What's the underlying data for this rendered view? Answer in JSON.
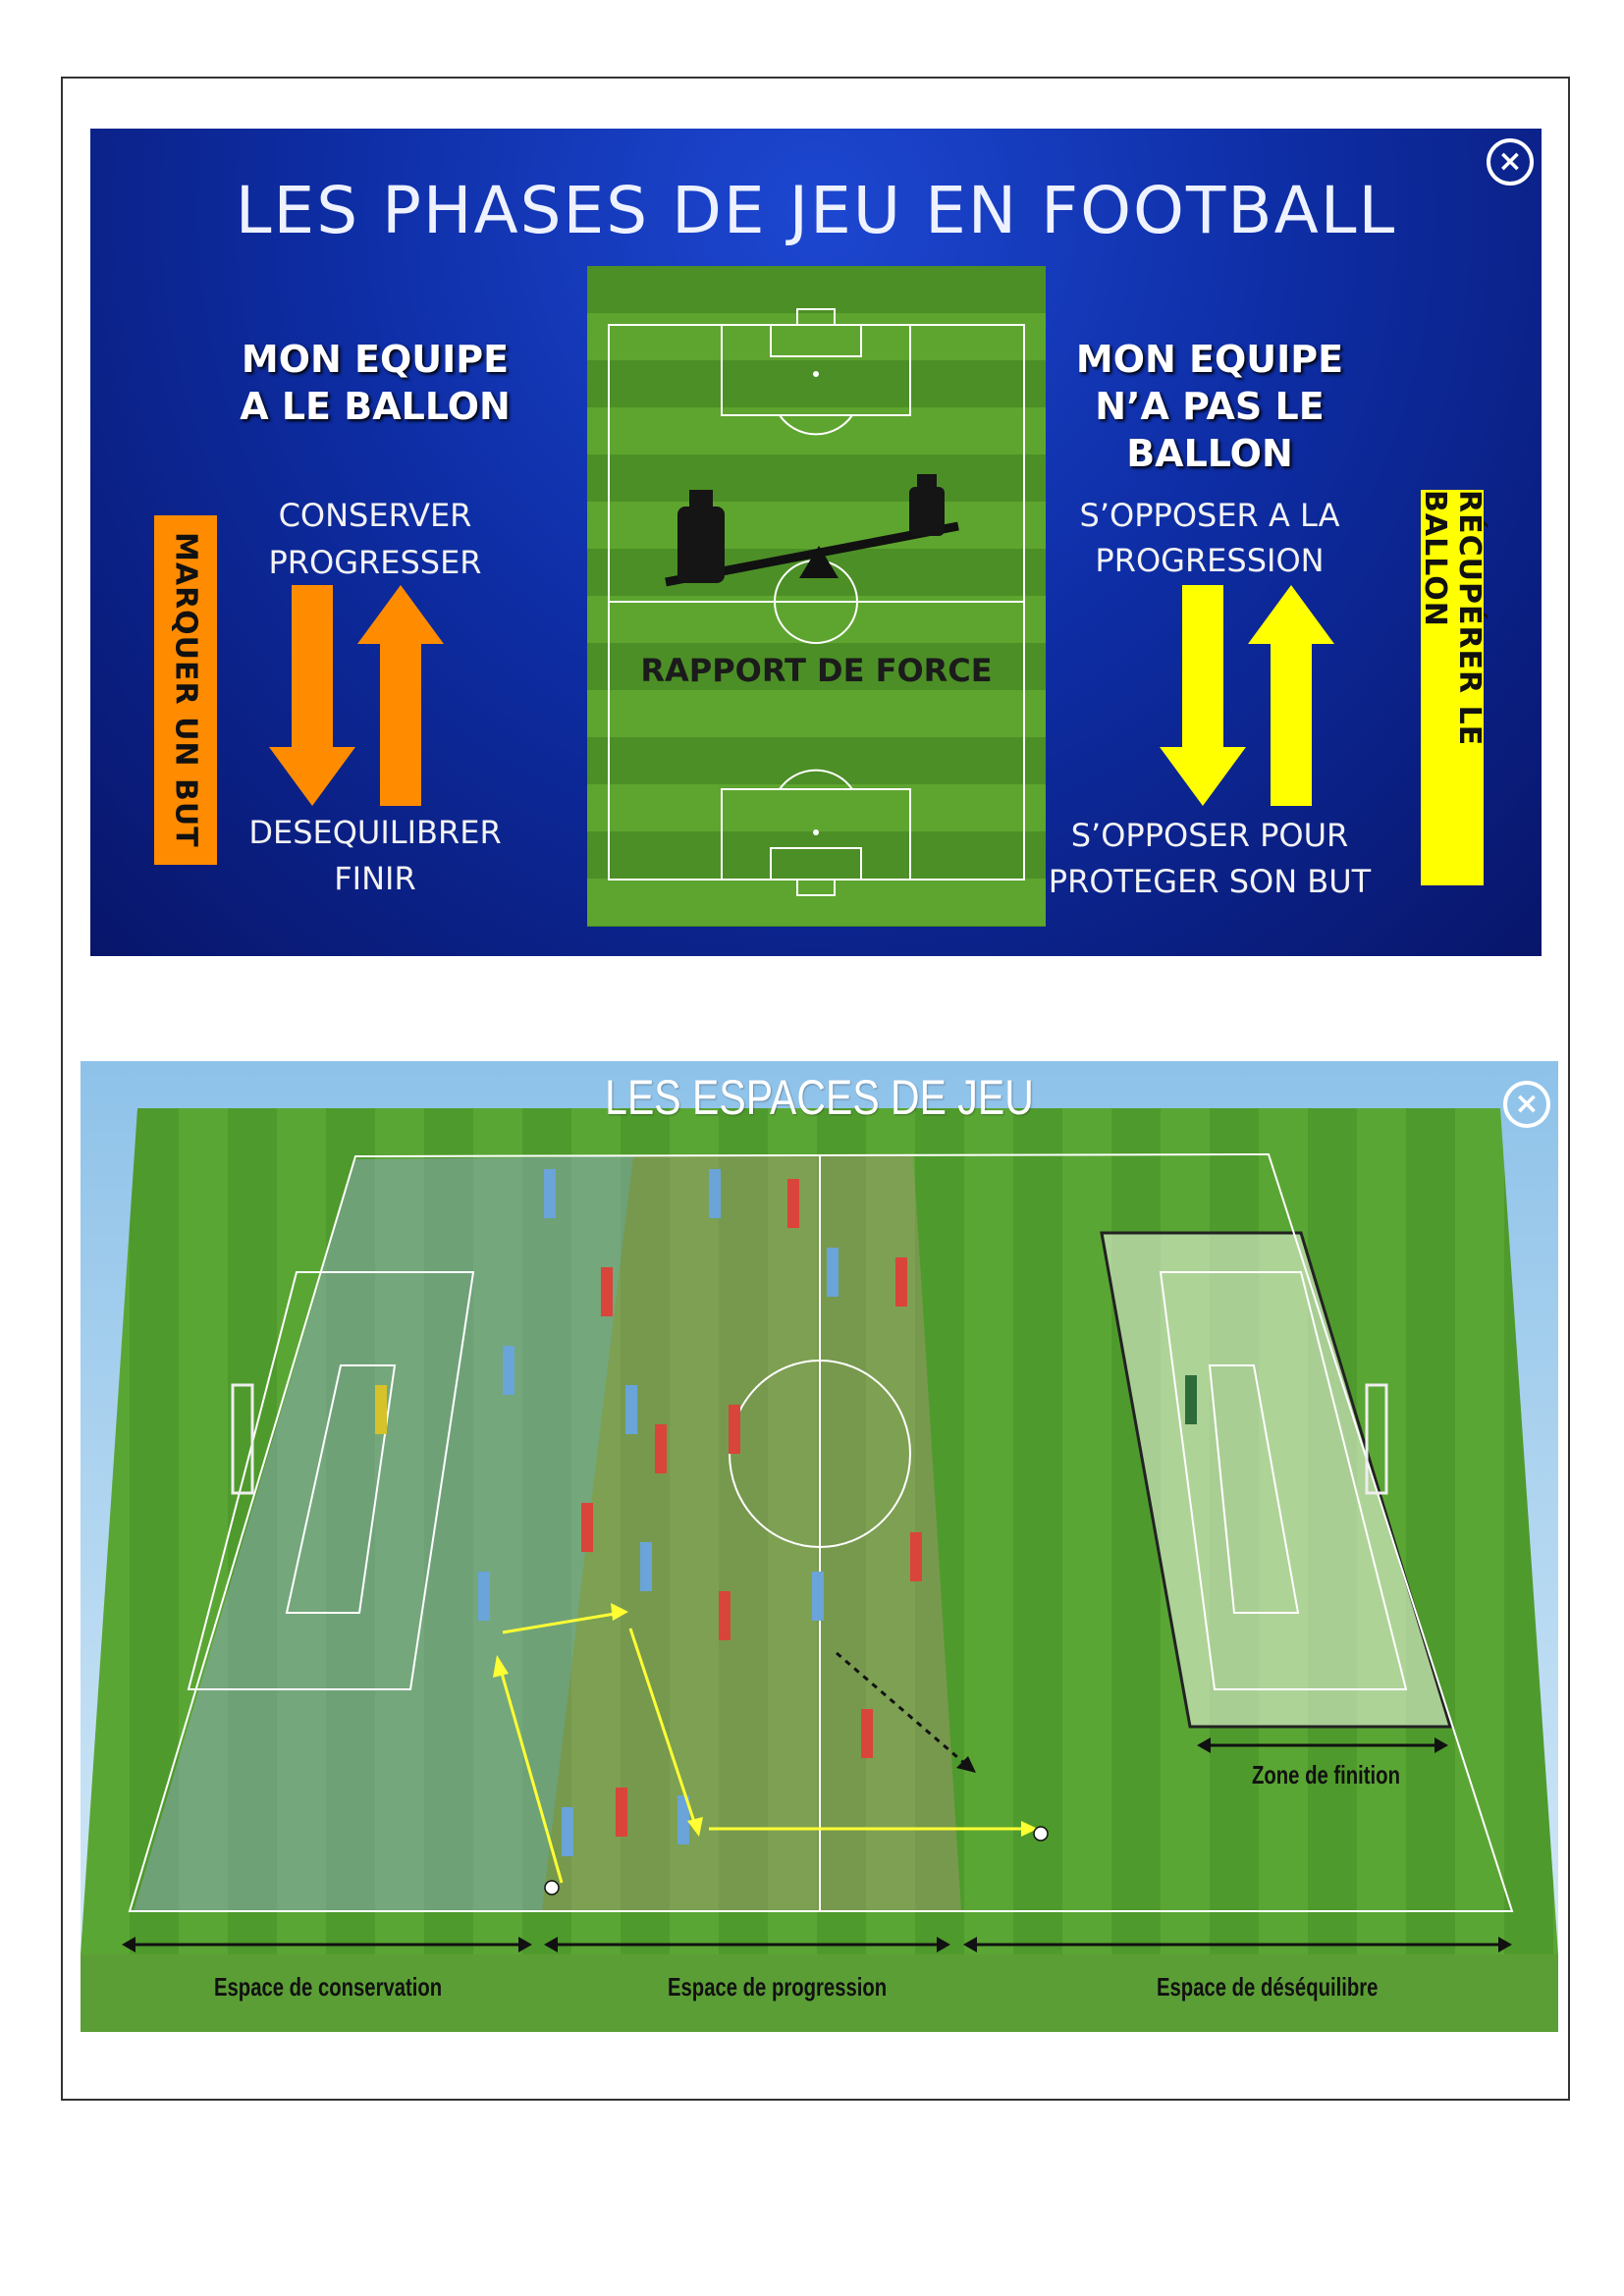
{
  "panel1": {
    "title": "LES PHASES DE JEU EN FOOTBALL",
    "left": {
      "heading_line1": "MON EQUIPE",
      "heading_line2": "A LE BALLON",
      "top_line1": "CONSERVER",
      "top_line2": "PROGRESSER",
      "bottom_line1": "DESEQUILIBRER",
      "bottom_line2": "FINIR",
      "vertical_label": "MARQUER UN BUT",
      "arrow_color": "#ff8c00",
      "bar_color": "#ff8c00"
    },
    "right": {
      "heading_line1": "MON EQUIPE",
      "heading_line2": "N’A PAS LE BALLON",
      "top_line1": "S’OPPOSER A LA",
      "top_line2": "PROGRESSION",
      "bottom_line1": "S’OPPOSER POUR",
      "bottom_line2": "PROTEGER SON BUT",
      "vertical_label": "RÉCUPÉRER LE BALLON",
      "arrow_color": "#ffff00",
      "bar_color": "#ffff00"
    },
    "center_label": "RAPPORT DE FORCE",
    "close_icon": "close-circle-icon"
  },
  "panel2": {
    "title": "LES ESPACES DE JEU",
    "zone_finition": "Zone de finition",
    "space_conservation": "Espace de conservation",
    "space_progression": "Espace de progression",
    "space_desequilibre": "Espace de déséquilibre",
    "close_icon": "close-circle-icon"
  }
}
